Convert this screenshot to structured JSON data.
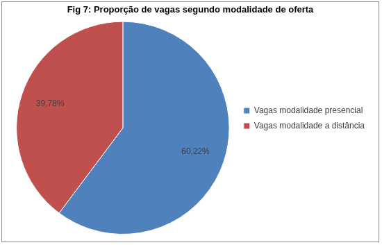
{
  "chart_data": {
    "type": "pie",
    "title": "Fig 7: Proporção de vagas segundo modalidade de oferta",
    "categories": [
      "Vagas modalidade presencial",
      "Vagas modalidade a distância"
    ],
    "values": [
      60.22,
      39.78
    ],
    "value_labels": [
      "60,22%",
      "39,78%"
    ],
    "colors": [
      "#4f81bd",
      "#c0504d"
    ],
    "legend": "right",
    "data_labels": true
  }
}
